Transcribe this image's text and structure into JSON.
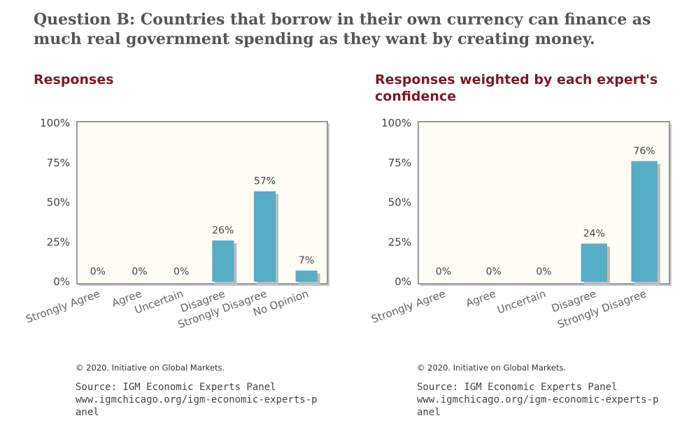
{
  "question": "Question B: Countries that borrow in their own currency can finance as much real government spending as they want by creating money.",
  "colors": {
    "bar": "#56adc6",
    "title": "#7a1a26",
    "frame": "#999999",
    "plot_bg": "#fdfdf5"
  },
  "chart_data": [
    {
      "type": "bar",
      "title": "Responses",
      "categories": [
        "Strongly Agree",
        "Agree",
        "Uncertain",
        "Disagree",
        "Strongly Disagree",
        "No Opinion"
      ],
      "values": [
        0,
        0,
        0,
        26,
        57,
        7
      ],
      "data_labels": [
        "0%",
        "0%",
        "0%",
        "26%",
        "57%",
        "7%"
      ],
      "yticks": [
        "0%",
        "25%",
        "50%",
        "75%",
        "100%"
      ],
      "ylim": [
        0,
        100
      ],
      "grid": false,
      "legend": "none"
    },
    {
      "type": "bar",
      "title": "Responses weighted by each expert's confidence",
      "categories": [
        "Strongly Agree",
        "Agree",
        "Uncertain",
        "Disagree",
        "Strongly Disagree"
      ],
      "values": [
        0,
        0,
        0,
        24,
        76
      ],
      "data_labels": [
        "0%",
        "0%",
        "0%",
        "24%",
        "76%"
      ],
      "yticks": [
        "0%",
        "25%",
        "50%",
        "75%",
        "100%"
      ],
      "ylim": [
        0,
        100
      ],
      "grid": false,
      "legend": "none"
    }
  ],
  "footer": [
    {
      "copyright": "© 2020. Initiative on Global Markets.",
      "source": "Source: IGM Economic Experts Panel",
      "url": "www.igmchicago.org/igm-economic-experts-panel"
    },
    {
      "copyright": "© 2020. Initiative on Global Markets.",
      "source": "Source: IGM Economic Experts Panel",
      "url": "www.igmchicago.org/igm-economic-experts-panel"
    }
  ]
}
